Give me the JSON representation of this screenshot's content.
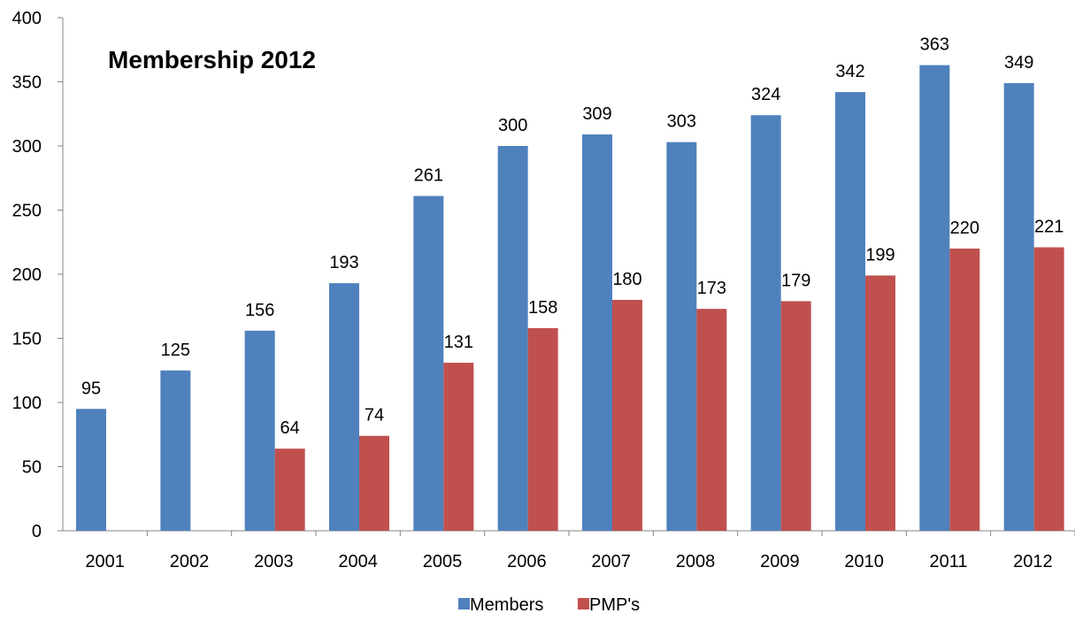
{
  "chart_data": {
    "type": "bar",
    "title": "Membership 2012",
    "categories": [
      "2001",
      "2002",
      "2003",
      "2004",
      "2005",
      "2006",
      "2007",
      "2008",
      "2009",
      "2010",
      "2011",
      "2012"
    ],
    "series": [
      {
        "name": "Members",
        "color": "#4F81BD",
        "values": [
          95,
          125,
          156,
          193,
          261,
          300,
          309,
          303,
          324,
          342,
          363,
          349
        ]
      },
      {
        "name": "PMP's",
        "color": "#C0504D",
        "values": [
          null,
          null,
          64,
          74,
          131,
          158,
          180,
          173,
          179,
          199,
          220,
          221
        ]
      }
    ],
    "ylim": [
      0,
      400
    ],
    "yticks": [
      0,
      50,
      100,
      150,
      200,
      250,
      300,
      350,
      400
    ],
    "grid": false,
    "legend": "bottom",
    "data_labels": true
  }
}
